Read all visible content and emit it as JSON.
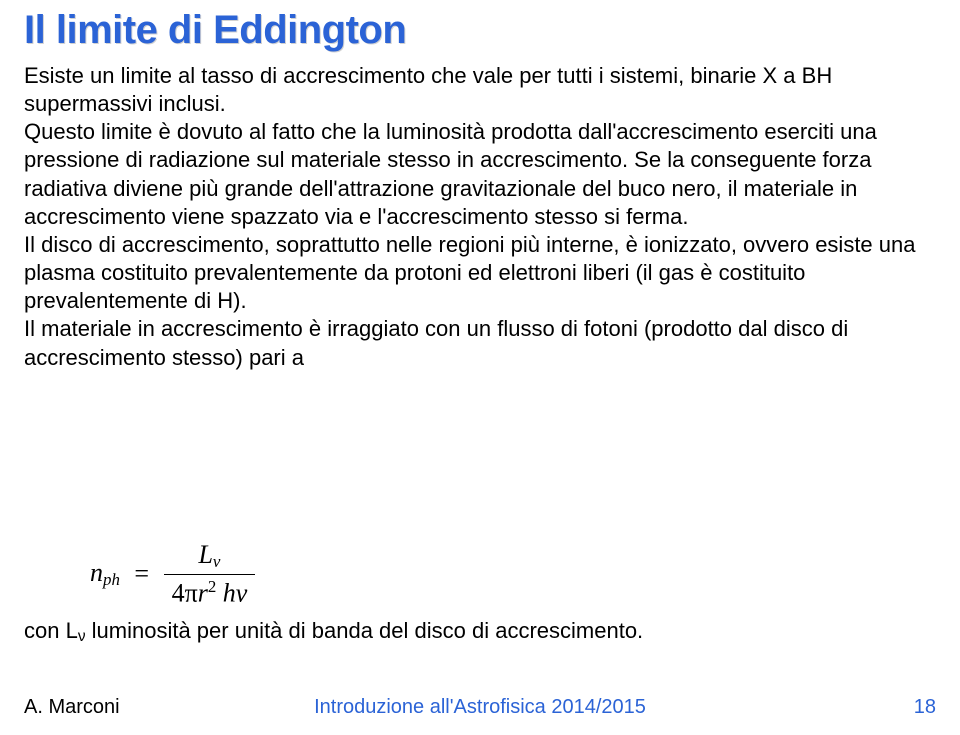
{
  "title": "Il limite di Eddington",
  "paragraph": "Esiste un limite al tasso di accrescimento che vale per tutti i sistemi, binarie X a BH supermassivi inclusi.\nQuesto limite è dovuto al fatto che la luminosità prodotta dall'accrescimento eserciti una pressione di radiazione sul materiale stesso in accrescimento. Se la conseguente forza radiativa diviene più grande dell'attrazione gravitazionale del buco nero, il materiale in accrescimento viene spazzato via e l'accrescimento stesso si ferma.\nIl disco di accrescimento, soprattutto nelle regioni più interne, è ionizzato, ovvero esiste una plasma costituito prevalentemente da protoni ed elettroni liberi (il gas è costituito prevalentemente di H).\nIl materiale in accrescimento è irraggiato con un flusso di fotoni (prodotto dal disco di accrescimento stesso) pari a",
  "formula": {
    "lhs_base": "n",
    "lhs_sub": "ph",
    "num_base": "L",
    "num_sub": "ν",
    "den_coeff": "4π",
    "den_r": "r",
    "den_r_exp": "2",
    "den_tail": " hν"
  },
  "closing_pre": "con L",
  "closing_sub": "ν",
  "closing_post": " luminosità per unità di banda del disco di accrescimento.",
  "footer": {
    "author": "A. Marconi",
    "course": "Introduzione all'Astrofisica 2014/2015",
    "page": "18"
  },
  "colors": {
    "title": "#2b63d6",
    "link": "#2b63d6",
    "text": "#000000",
    "bg": "#ffffff"
  },
  "fontsize": {
    "title": 40,
    "body": 22,
    "formula": 26,
    "footer": 20
  }
}
